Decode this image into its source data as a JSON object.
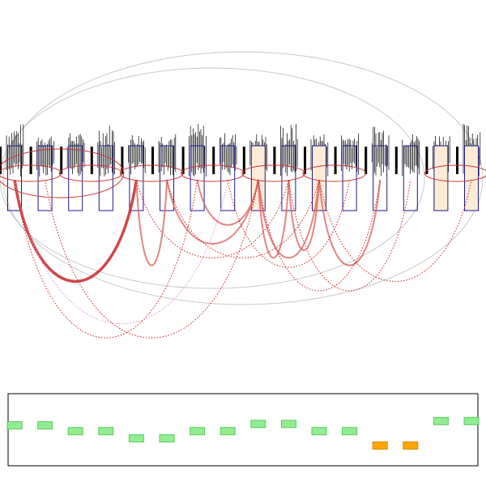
{
  "colors": {
    "background": "#ffffff",
    "outer_ellipse": "#c8c8c8",
    "group_ellipse": "#cc3333",
    "box_stroke": "#1a1a8c",
    "box_fill_highlight": "#fdebd6",
    "arc_strong": "#cc3333",
    "arc_medium": "#dd6666",
    "arc_dotted": "#cc2222",
    "arc_pink": "#e08ee0",
    "cell_green": "#90ee90",
    "cell_green_stroke": "#5cc85c",
    "cell_orange": "#ffa500",
    "cell_orange_stroke": "#d88a00",
    "panel_border": "#000000",
    "ticks": "#000000"
  },
  "columns": [
    {
      "id": 0,
      "highlight": false,
      "cell": "green",
      "cell_level": 0.56
    },
    {
      "id": 1,
      "highlight": false,
      "cell": "green",
      "cell_level": 0.56
    },
    {
      "id": 2,
      "highlight": false,
      "cell": "green",
      "cell_level": 0.48
    },
    {
      "id": 3,
      "highlight": false,
      "cell": "green",
      "cell_level": 0.48
    },
    {
      "id": 4,
      "highlight": false,
      "cell": "green",
      "cell_level": 0.38
    },
    {
      "id": 5,
      "highlight": false,
      "cell": "green",
      "cell_level": 0.38
    },
    {
      "id": 6,
      "highlight": false,
      "cell": "green",
      "cell_level": 0.48
    },
    {
      "id": 7,
      "highlight": false,
      "cell": "green",
      "cell_level": 0.48
    },
    {
      "id": 8,
      "highlight": true,
      "cell": "green",
      "cell_level": 0.58
    },
    {
      "id": 9,
      "highlight": false,
      "cell": "green",
      "cell_level": 0.58
    },
    {
      "id": 10,
      "highlight": true,
      "cell": "green",
      "cell_level": 0.48
    },
    {
      "id": 11,
      "highlight": false,
      "cell": "green",
      "cell_level": 0.48
    },
    {
      "id": 12,
      "highlight": false,
      "cell": "orange",
      "cell_level": 0.28
    },
    {
      "id": 13,
      "highlight": false,
      "cell": "orange",
      "cell_level": 0.28
    },
    {
      "id": 14,
      "highlight": true,
      "cell": "green",
      "cell_level": 0.62
    },
    {
      "id": 15,
      "highlight": true,
      "cell": "green",
      "cell_level": 0.62
    }
  ],
  "groups": [
    [
      0,
      1
    ],
    [
      2,
      3
    ],
    [
      4,
      5
    ],
    [
      6,
      7
    ],
    [
      8,
      9
    ],
    [
      10,
      11
    ],
    [
      14,
      15
    ]
  ],
  "big_groups": [
    [
      0,
      3
    ]
  ],
  "links": [
    {
      "from": 0,
      "to": 4,
      "style": "strong",
      "depth": 0.95
    },
    {
      "from": 4,
      "to": 5,
      "style": "medium",
      "depth": 0.78
    },
    {
      "from": 5,
      "to": 8,
      "style": "medium",
      "depth": 0.55
    },
    {
      "from": 6,
      "to": 8,
      "style": "medium",
      "depth": 0.35
    },
    {
      "from": 8,
      "to": 9,
      "style": "medium",
      "depth": 0.7
    },
    {
      "from": 8,
      "to": 10,
      "style": "medium",
      "depth": 0.7
    },
    {
      "from": 9,
      "to": 10,
      "style": "medium",
      "depth": 0.62
    },
    {
      "from": 10,
      "to": 12,
      "style": "medium",
      "depth": 0.78
    },
    {
      "from": 0,
      "to": 6,
      "style": "dotted",
      "depth": 1.55
    },
    {
      "from": 1,
      "to": 8,
      "style": "dotted",
      "depth": 1.55
    },
    {
      "from": 0,
      "to": 7,
      "style": "pink",
      "depth": 1.4
    },
    {
      "from": 4,
      "to": 9,
      "style": "dotted",
      "depth": 0.7
    },
    {
      "from": 5,
      "to": 10,
      "style": "dotted",
      "depth": 0.7
    },
    {
      "from": 8,
      "to": 12,
      "style": "dotted",
      "depth": 1.05
    },
    {
      "from": 9,
      "to": 13,
      "style": "dotted",
      "depth": 1.05
    },
    {
      "from": 10,
      "to": 15,
      "style": "dotted",
      "depth": 0.95
    },
    {
      "from": 7,
      "to": 11,
      "style": "dotted",
      "depth": 0.8
    }
  ]
}
